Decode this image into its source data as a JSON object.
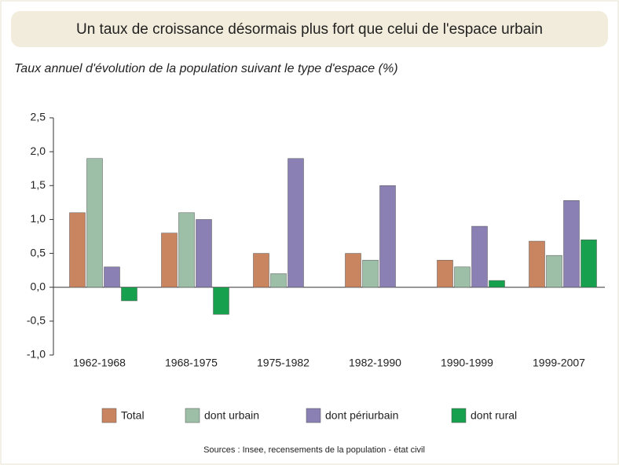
{
  "chart_data": {
    "type": "bar",
    "title": "Un taux de croissance désormais plus fort que celui de l'espace urbain",
    "subtitle": "Taux annuel d'évolution de la population suivant le type d'espace (%)",
    "categories": [
      "1962-1968",
      "1968-1975",
      "1975-1982",
      "1982-1990",
      "1990-1999",
      "1999-2007"
    ],
    "series": [
      {
        "name": "Total",
        "color": "#c98560",
        "values": [
          1.1,
          0.8,
          0.5,
          0.5,
          0.4,
          0.68
        ]
      },
      {
        "name": "dont urbain",
        "color": "#9dbfa7",
        "values": [
          1.9,
          1.1,
          0.2,
          0.4,
          0.3,
          0.47
        ]
      },
      {
        "name": "dont périurbain",
        "color": "#8a80b4",
        "values": [
          0.3,
          1.0,
          1.9,
          1.5,
          0.9,
          1.28
        ]
      },
      {
        "name": "dont rural",
        "color": "#17a04d",
        "values": [
          -0.2,
          -0.4,
          0,
          0,
          0.1,
          0.7
        ]
      }
    ],
    "ylim": [
      -1.0,
      2.5
    ],
    "yticks": [
      {
        "value": -1.0,
        "label": "-1,0"
      },
      {
        "value": -0.5,
        "label": "-0,5"
      },
      {
        "value": 0.0,
        "label": "0,0"
      },
      {
        "value": 0.5,
        "label": "0,5"
      },
      {
        "value": 1.0,
        "label": "1,0"
      },
      {
        "value": 1.5,
        "label": "1,5"
      },
      {
        "value": 2.0,
        "label": "2,0"
      },
      {
        "value": 2.5,
        "label": "2,5"
      }
    ],
    "grid": false,
    "source": "Sources : Insee, recensements de la population - état civil"
  }
}
